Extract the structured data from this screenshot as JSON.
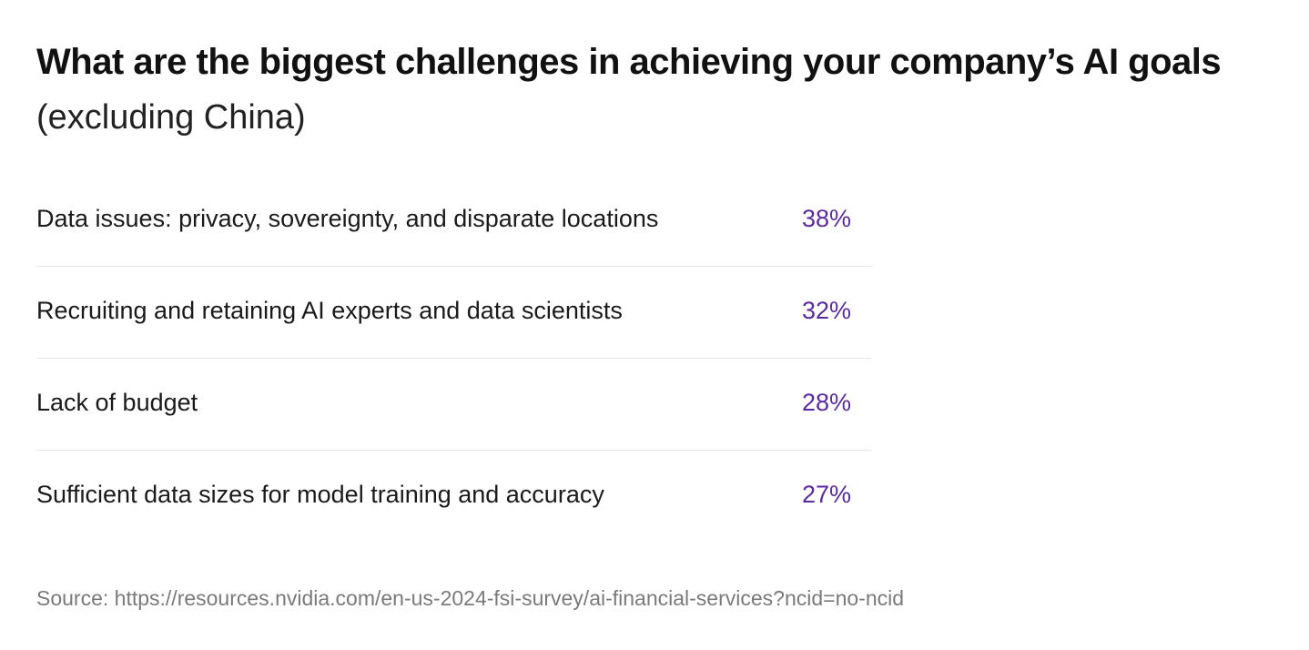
{
  "chart_data": {
    "type": "table",
    "title": "What are the biggest challenges in achieving your company’s AI goals",
    "subtitle": "(excluding China)",
    "categories": [
      "Data issues: privacy, sovereignty, and disparate locations",
      "Recruiting and retaining AI experts and data scientists",
      "Lack of budget",
      "Sufficient data sizes for model training and accuracy"
    ],
    "values": [
      38,
      32,
      28,
      27
    ],
    "value_labels": [
      "38%",
      "32%",
      "28%",
      "27%"
    ],
    "value_color": "#5b2aa0",
    "divider_color": "#e6e6e6",
    "source": "Source: https://resources.nvidia.com/en-us-2024-fsi-survey/ai-financial-services?ncid=no-ncid"
  }
}
